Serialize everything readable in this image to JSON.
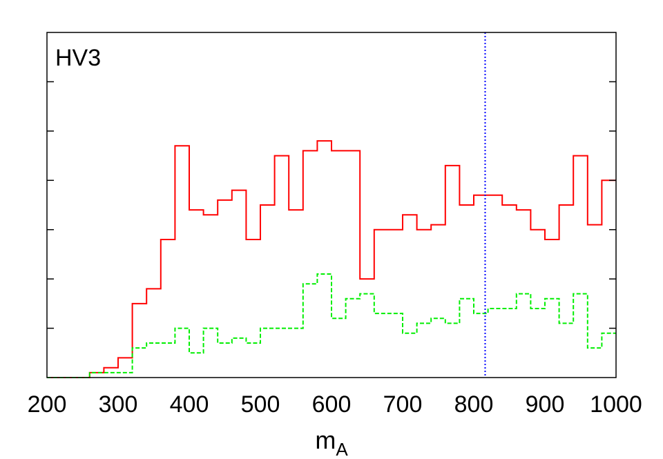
{
  "chart_data": {
    "type": "line",
    "title": "",
    "panel_label": "HV3",
    "xlabel_main": "m",
    "xlabel_sub": "A",
    "ylabel": "",
    "xlim": [
      200,
      1000
    ],
    "ylim": [
      0,
      7
    ],
    "x_ticks": [
      200,
      300,
      400,
      500,
      600,
      700,
      800,
      900,
      1000
    ],
    "y_ticks": [
      1,
      2,
      3,
      4,
      5,
      6
    ],
    "y_tick_labels_shown": false,
    "minor_x_ticks": [],
    "grid": false,
    "legend": "none",
    "vline": {
      "x": 816,
      "color": "#0000ff",
      "style": "dotted"
    },
    "bin_edges": [
      200,
      220,
      240,
      260,
      280,
      300,
      320,
      340,
      360,
      380,
      400,
      420,
      440,
      460,
      480,
      500,
      520,
      540,
      560,
      580,
      600,
      620,
      640,
      660,
      680,
      700,
      720,
      740,
      760,
      780,
      800,
      820,
      840,
      860,
      880,
      900,
      920,
      940,
      960,
      980,
      1000
    ],
    "series": [
      {
        "color": "#ff0000",
        "style": "solid",
        "values": [
          0,
          0,
          0,
          0.1,
          0.2,
          0.4,
          1.5,
          1.8,
          2.8,
          4.7,
          3.4,
          3.3,
          3.6,
          3.8,
          2.8,
          3.5,
          4.5,
          3.4,
          4.6,
          4.8,
          4.6,
          4.6,
          2.0,
          3.0,
          3.0,
          3.3,
          3.0,
          3.1,
          4.3,
          3.5,
          3.7,
          3.7,
          3.5,
          3.4,
          3.0,
          2.8,
          3.5,
          4.5,
          3.1,
          4.0
        ]
      },
      {
        "color": "#00ee00",
        "style": "dashed",
        "values": [
          0,
          0,
          0,
          0.1,
          0.1,
          0.1,
          0.6,
          0.7,
          0.7,
          1.0,
          0.5,
          1.0,
          0.7,
          0.8,
          0.7,
          1.0,
          1.0,
          1.0,
          1.9,
          2.1,
          1.2,
          1.6,
          1.7,
          1.3,
          1.3,
          0.9,
          1.1,
          1.2,
          1.1,
          1.6,
          1.3,
          1.4,
          1.4,
          1.7,
          1.4,
          1.6,
          1.1,
          1.7,
          0.6,
          0.9
        ]
      }
    ]
  }
}
